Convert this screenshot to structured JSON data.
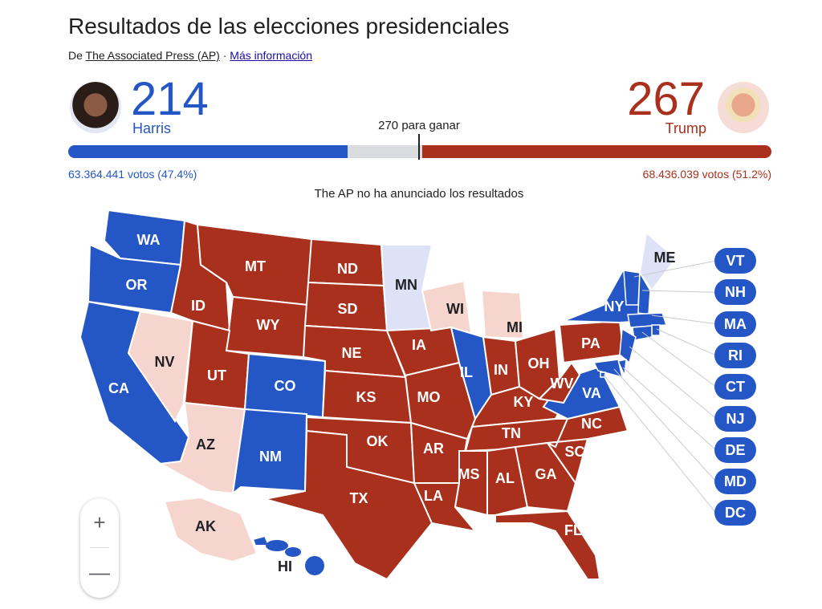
{
  "title": "Resultados de las elecciones presidenciales",
  "source": {
    "prefix": "De",
    "ap_link": "The Associated Press (AP)",
    "sep": "·",
    "more_link": "Más información"
  },
  "harris": {
    "name": "Harris",
    "electoral_votes": "214",
    "votes": "63.364.441 votos (47.4%)",
    "share": 214
  },
  "trump": {
    "name": "Trump",
    "electoral_votes": "267",
    "votes": "68.436.039 votos (51.2%)",
    "share": 267
  },
  "to_win": "270 para ganar",
  "total_electoral": 538,
  "status": "The AP no ha anunciado los resultados",
  "colors": {
    "dem": "#2457c5",
    "rep": "#a8301c",
    "lean_dem": "#dde2f7",
    "lean_rep": "#f6d5cf"
  },
  "states": [
    {
      "abbr": "WA",
      "status": "dem"
    },
    {
      "abbr": "OR",
      "status": "dem"
    },
    {
      "abbr": "CA",
      "status": "dem"
    },
    {
      "abbr": "NV",
      "status": "lean_rep"
    },
    {
      "abbr": "ID",
      "status": "rep"
    },
    {
      "abbr": "MT",
      "status": "rep"
    },
    {
      "abbr": "WY",
      "status": "rep"
    },
    {
      "abbr": "UT",
      "status": "rep"
    },
    {
      "abbr": "AZ",
      "status": "lean_rep"
    },
    {
      "abbr": "CO",
      "status": "dem"
    },
    {
      "abbr": "NM",
      "status": "dem"
    },
    {
      "abbr": "ND",
      "status": "rep"
    },
    {
      "abbr": "SD",
      "status": "rep"
    },
    {
      "abbr": "NE",
      "status": "rep"
    },
    {
      "abbr": "KS",
      "status": "rep"
    },
    {
      "abbr": "OK",
      "status": "rep"
    },
    {
      "abbr": "TX",
      "status": "rep"
    },
    {
      "abbr": "MN",
      "status": "lean_dem"
    },
    {
      "abbr": "IA",
      "status": "rep"
    },
    {
      "abbr": "MO",
      "status": "rep"
    },
    {
      "abbr": "AR",
      "status": "rep"
    },
    {
      "abbr": "LA",
      "status": "rep"
    },
    {
      "abbr": "WI",
      "status": "lean_rep"
    },
    {
      "abbr": "IL",
      "status": "dem"
    },
    {
      "abbr": "MI",
      "status": "lean_rep"
    },
    {
      "abbr": "IN",
      "status": "rep"
    },
    {
      "abbr": "OH",
      "status": "rep"
    },
    {
      "abbr": "KY",
      "status": "rep"
    },
    {
      "abbr": "TN",
      "status": "rep"
    },
    {
      "abbr": "MS",
      "status": "rep"
    },
    {
      "abbr": "AL",
      "status": "rep"
    },
    {
      "abbr": "GA",
      "status": "rep"
    },
    {
      "abbr": "FL",
      "status": "rep"
    },
    {
      "abbr": "SC",
      "status": "rep"
    },
    {
      "abbr": "NC",
      "status": "rep"
    },
    {
      "abbr": "VA",
      "status": "dem"
    },
    {
      "abbr": "WV",
      "status": "rep"
    },
    {
      "abbr": "PA",
      "status": "rep"
    },
    {
      "abbr": "NY",
      "status": "dem"
    },
    {
      "abbr": "ME",
      "status": "lean_dem"
    },
    {
      "abbr": "AK",
      "status": "lean_rep"
    },
    {
      "abbr": "HI",
      "status": "dem"
    }
  ],
  "small_states": [
    {
      "abbr": "VT",
      "status": "dem"
    },
    {
      "abbr": "NH",
      "status": "dem"
    },
    {
      "abbr": "MA",
      "status": "dem"
    },
    {
      "abbr": "RI",
      "status": "dem"
    },
    {
      "abbr": "CT",
      "status": "dem"
    },
    {
      "abbr": "NJ",
      "status": "dem"
    },
    {
      "abbr": "DE",
      "status": "dem"
    },
    {
      "abbr": "MD",
      "status": "dem"
    },
    {
      "abbr": "DC",
      "status": "dem"
    }
  ],
  "zoom": {
    "in": "+",
    "out": "—"
  }
}
